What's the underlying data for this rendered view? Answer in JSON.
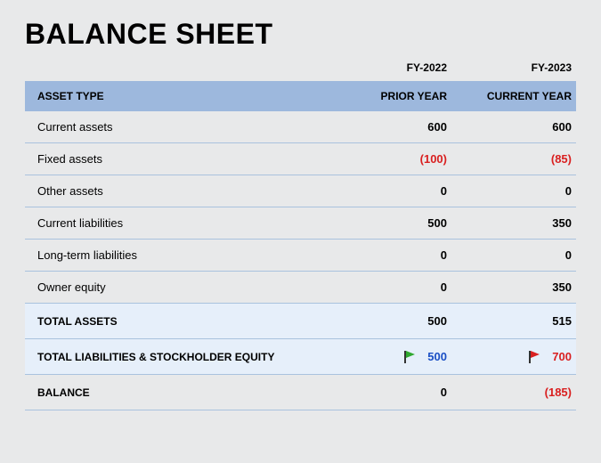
{
  "title": "BALANCE SHEET",
  "fy": {
    "col2": "FY-2022",
    "col3": "FY-2023"
  },
  "header": {
    "label": "ASSET TYPE",
    "col2": "PRIOR YEAR",
    "col3": "CURRENT YEAR"
  },
  "rows": [
    {
      "label": "Current assets",
      "v1": "600",
      "v2": "600",
      "neg1": false,
      "neg2": false
    },
    {
      "label": "Fixed assets",
      "v1": "(100)",
      "v2": "(85)",
      "neg1": true,
      "neg2": true
    },
    {
      "label": "Other assets",
      "v1": "0",
      "v2": "0",
      "neg1": false,
      "neg2": false
    },
    {
      "label": "Current liabilities",
      "v1": "500",
      "v2": "350",
      "neg1": false,
      "neg2": false
    },
    {
      "label": "Long-term liabilities",
      "v1": "0",
      "v2": "0",
      "neg1": false,
      "neg2": false
    },
    {
      "label": "Owner equity",
      "v1": "0",
      "v2": "350",
      "neg1": false,
      "neg2": false
    }
  ],
  "totals": {
    "assets": {
      "label": "TOTAL ASSETS",
      "v1": "500",
      "v2": "515"
    },
    "liab": {
      "label": "TOTAL LIABILITIES & STOCKHOLDER EQUITY",
      "v1": "500",
      "v2": "700"
    },
    "balance": {
      "label": "BALANCE",
      "v1": "0",
      "v2": "(185)"
    }
  },
  "colors": {
    "header_bg": "#9db8dd",
    "total_bg": "#e6effa",
    "border": "#a9c2de",
    "negative": "#d92020",
    "blue": "#1a4fc5",
    "flag_ok": "#2fa82f",
    "flag_bad": "#d92020"
  }
}
